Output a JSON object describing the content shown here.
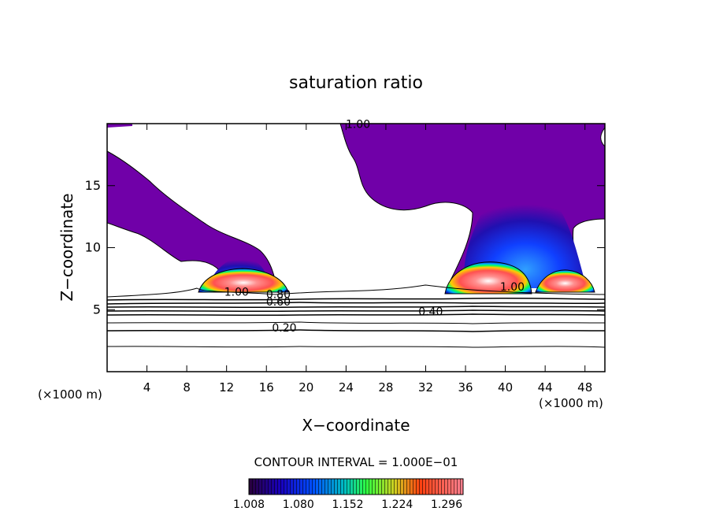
{
  "chart_data": {
    "type": "heatmap",
    "title": "saturation ratio",
    "xlabel": "X−coordinate",
    "ylabel": "Z−coordinate",
    "x_unit_left": "(×1000 m)",
    "x_unit_right": "(×1000 m)",
    "xlim": [
      0,
      50
    ],
    "ylim": [
      0,
      20
    ],
    "x_ticks": [
      4,
      8,
      12,
      16,
      20,
      24,
      28,
      32,
      36,
      40,
      44,
      48
    ],
    "x_tick_labels": [
      "4",
      "8",
      "12",
      "16",
      "20",
      "24",
      "28",
      "32",
      "36",
      "40",
      "44",
      "48"
    ],
    "y_ticks": [
      5,
      10,
      15
    ],
    "y_tick_labels": [
      "5",
      "10",
      "15"
    ],
    "contour_interval_text": "CONTOUR INTERVAL = 1.000E−01",
    "contour_labels": [
      {
        "text": "1.00",
        "x": 25.2,
        "z": 19.7
      },
      {
        "text": "1.00",
        "x": 13.0,
        "z": 6.2
      },
      {
        "text": "0.80",
        "x": 17.2,
        "z": 6.0
      },
      {
        "text": "0.60",
        "x": 17.2,
        "z": 5.4
      },
      {
        "text": "1.00",
        "x": 40.7,
        "z": 6.6
      },
      {
        "text": "0.40",
        "x": 32.5,
        "z": 4.6
      },
      {
        "text": "0.20",
        "x": 17.8,
        "z": 3.3
      }
    ],
    "colorbar": {
      "min": 1.008,
      "max": 1.32,
      "ticks": [
        "1.008",
        "1.080",
        "1.152",
        "1.224",
        "1.296"
      ],
      "colormap": [
        "#2a003a",
        "#0000ff",
        "#00c0ff",
        "#00ff60",
        "#ffff00",
        "#ff3010",
        "#ff8090"
      ]
    },
    "colors": {
      "subsaturated_region": "#7000a8",
      "contour_line": "#000000",
      "background": "#ffffff"
    }
  }
}
